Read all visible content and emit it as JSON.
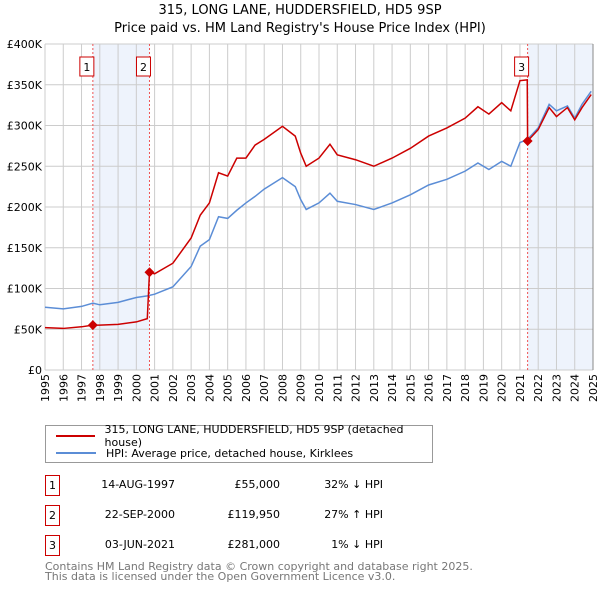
{
  "chart_data": {
    "type": "line",
    "title": "315, LONG LANE, HUDDERSFIELD, HD5 9SP",
    "subtitle": "Price paid vs. HM Land Registry's House Price Index (HPI)",
    "xlim": [
      1995,
      2025
    ],
    "ylim": [
      0,
      400000
    ],
    "x_ticks": [
      "1995",
      "1996",
      "1997",
      "1998",
      "1999",
      "2000",
      "2001",
      "2002",
      "2003",
      "2004",
      "2005",
      "2006",
      "2007",
      "2008",
      "2009",
      "2010",
      "2011",
      "2012",
      "2013",
      "2014",
      "2015",
      "2016",
      "2017",
      "2018",
      "2019",
      "2020",
      "2021",
      "2022",
      "2023",
      "2024",
      "2025"
    ],
    "y_ticks": [
      {
        "v": 0,
        "l": "£0"
      },
      {
        "v": 50000,
        "l": "£50K"
      },
      {
        "v": 100000,
        "l": "£100K"
      },
      {
        "v": 150000,
        "l": "£150K"
      },
      {
        "v": 200000,
        "l": "£200K"
      },
      {
        "v": 250000,
        "l": "£250K"
      },
      {
        "v": 300000,
        "l": "£300K"
      },
      {
        "v": 350000,
        "l": "£350K"
      },
      {
        "v": 400000,
        "l": "£400K"
      }
    ],
    "grid": true,
    "colors": {
      "property": "#cc0000",
      "hpi": "#5b8dd6",
      "shade": "#eef3fc"
    },
    "series": [
      {
        "name": "315, LONG LANE, HUDDERSFIELD, HD5 9SP (detached house)",
        "x": [
          1995,
          1996,
          1997,
          1997.62,
          1998,
          1999,
          2000,
          2000.6,
          2000.72,
          2001,
          2002,
          2003,
          2003.5,
          2004,
          2004.5,
          2005,
          2005.5,
          2006,
          2006.5,
          2007,
          2008,
          2008.7,
          2009,
          2009.3,
          2010,
          2010.6,
          2011,
          2012,
          2013,
          2014,
          2015,
          2016,
          2017,
          2018,
          2018.7,
          2019.3,
          2020,
          2020.5,
          2021,
          2021.4,
          2021.42,
          2022,
          2022.6,
          2023,
          2023.6,
          2024,
          2024.4,
          2024.9
        ],
        "y": [
          52000,
          51000,
          53000,
          55000,
          55000,
          56000,
          59000,
          63000,
          119950,
          118000,
          131000,
          162000,
          190000,
          205000,
          242000,
          238000,
          260000,
          260000,
          276000,
          283000,
          299000,
          287000,
          266000,
          250000,
          260000,
          277000,
          264000,
          258000,
          250000,
          260000,
          272000,
          287000,
          297000,
          309000,
          323000,
          314000,
          328000,
          318000,
          355000,
          356000,
          281000,
          295000,
          322000,
          311000,
          322000,
          307000,
          322000,
          338000
        ]
      },
      {
        "name": "HPI: Average price, detached house, Kirklees",
        "x": [
          1995,
          1996,
          1997,
          1997.62,
          1998,
          1999,
          2000,
          2000.6,
          2001,
          2002,
          2003,
          2003.5,
          2004,
          2004.5,
          2005,
          2005.5,
          2006,
          2006.5,
          2007,
          2008,
          2008.7,
          2009,
          2009.3,
          2010,
          2010.6,
          2011,
          2012,
          2013,
          2014,
          2015,
          2016,
          2017,
          2018,
          2018.7,
          2019.3,
          2020,
          2020.5,
          2021,
          2021.42,
          2022,
          2022.6,
          2023,
          2023.6,
          2024,
          2024.4,
          2024.9
        ],
        "y": [
          77000,
          75000,
          78000,
          82000,
          80000,
          83000,
          89000,
          91000,
          93000,
          102000,
          127000,
          152000,
          160000,
          188000,
          186000,
          196000,
          205000,
          213000,
          222000,
          236000,
          225000,
          209000,
          197000,
          205000,
          217000,
          207000,
          203000,
          197000,
          205000,
          215000,
          227000,
          234000,
          244000,
          254000,
          246000,
          256000,
          250000,
          279000,
          283000,
          297000,
          326000,
          318000,
          324000,
          309000,
          326000,
          342000
        ]
      }
    ],
    "sales": [
      {
        "label": "1",
        "x": 1997.62,
        "y": 55000
      },
      {
        "label": "2",
        "x": 2000.72,
        "y": 119950
      },
      {
        "label": "3",
        "x": 2021.42,
        "y": 281000
      }
    ],
    "shaded_ranges": [
      [
        1997.62,
        2000.72
      ],
      [
        2021.42,
        2025
      ]
    ]
  },
  "legend": {
    "property": "315, LONG LANE, HUDDERSFIELD, HD5 9SP (detached house)",
    "hpi": "HPI: Average price, detached house, Kirklees"
  },
  "transactions": [
    {
      "num": "1",
      "date": "14-AUG-1997",
      "price": "£55,000",
      "hpi": "32% ↓ HPI"
    },
    {
      "num": "2",
      "date": "22-SEP-2000",
      "price": "£119,950",
      "hpi": "27% ↑ HPI"
    },
    {
      "num": "3",
      "date": "03-JUN-2021",
      "price": "£281,000",
      "hpi": "1% ↓ HPI"
    }
  ],
  "footer": {
    "line1": "Contains HM Land Registry data © Crown copyright and database right 2025.",
    "line2": "This data is licensed under the Open Government Licence v3.0."
  }
}
